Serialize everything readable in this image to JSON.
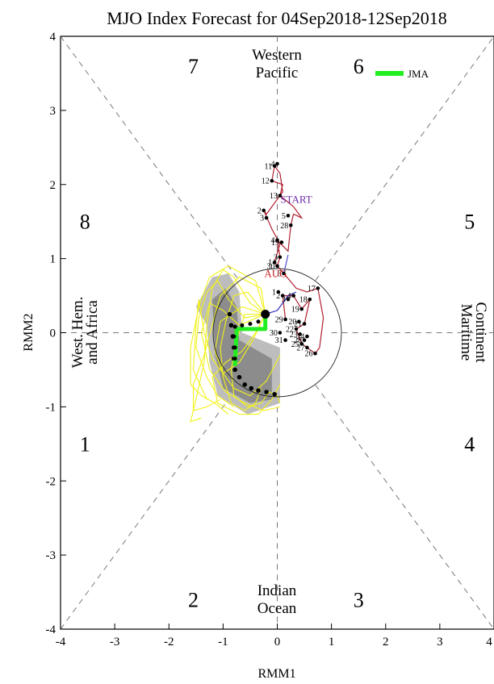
{
  "chart_data": {
    "type": "scatter",
    "title": "MJO Index Forecast for 04Sep2018-12Sep2018",
    "xlabel": "RMM1",
    "ylabel": "RMM2",
    "xlim": [
      -4,
      4
    ],
    "ylim": [
      -4,
      4
    ],
    "xticks": [
      "-4",
      "-3",
      "-2",
      "-1",
      "0",
      "1",
      "2",
      "3",
      "4"
    ],
    "yticks": [
      "-4",
      "-3",
      "-2",
      "-1",
      "0",
      "1",
      "2",
      "3",
      "4"
    ],
    "phases": [
      {
        "label": "1",
        "x": -3.55,
        "y": -1.5
      },
      {
        "label": "2",
        "x": -1.55,
        "y": -3.6
      },
      {
        "label": "3",
        "x": 1.5,
        "y": -3.6
      },
      {
        "label": "4",
        "x": 3.55,
        "y": -1.5
      },
      {
        "label": "5",
        "x": 3.55,
        "y": 1.5
      },
      {
        "label": "6",
        "x": 1.5,
        "y": 3.6
      },
      {
        "label": "7",
        "x": -1.55,
        "y": 3.6
      },
      {
        "label": "8",
        "x": -3.55,
        "y": 1.5
      }
    ],
    "regions": {
      "top": [
        "Western",
        "Pacific"
      ],
      "bottom": [
        "Indian",
        "Ocean"
      ],
      "left": [
        "West. Hem.",
        "and Africa"
      ],
      "right": [
        "Maritime",
        "Continent"
      ]
    },
    "legend": {
      "entries": [
        {
          "name": "JMA",
          "color": "#22ee22"
        }
      ],
      "position": "top-right"
    },
    "month_labels": [
      {
        "text": "START",
        "color": "#6a2aa8",
        "x": 0.35,
        "y": 1.75
      },
      {
        "text": "AUG",
        "color": "#d02020",
        "x": -0.03,
        "y": 0.75
      }
    ],
    "observed": {
      "color": "#b02030",
      "points": [
        {
          "label": "1",
          "x": 0.02,
          "y": 0.55
        },
        {
          "label": "2",
          "x": 0.1,
          "y": 0.5
        },
        {
          "label": "3",
          "x": 0.2,
          "y": 0.45
        },
        {
          "label": "4",
          "x": 0.3,
          "y": 0.5
        },
        {
          "label": "17",
          "x": 0.75,
          "y": 0.6
        },
        {
          "label": "18",
          "x": 0.6,
          "y": 0.45
        },
        {
          "label": "19",
          "x": 0.45,
          "y": 0.32
        },
        {
          "label": "20",
          "x": 0.4,
          "y": 0.15
        },
        {
          "label": "21",
          "x": 0.5,
          "y": 0.12
        },
        {
          "label": "22",
          "x": 0.35,
          "y": 0.05
        },
        {
          "label": "23",
          "x": 0.42,
          "y": -0.02
        },
        {
          "label": "24",
          "x": 0.55,
          "y": -0.05
        },
        {
          "label": "25",
          "x": 0.45,
          "y": -0.15
        },
        {
          "label": "26",
          "x": 0.7,
          "y": -0.28
        },
        {
          "label": "27",
          "x": 0.55,
          "y": -0.2
        },
        {
          "label": "28",
          "x": 0.5,
          "y": -0.1
        },
        {
          "label": "29",
          "x": 0.15,
          "y": 0.18
        },
        {
          "label": "30",
          "x": 0.05,
          "y": 0.0
        },
        {
          "label": "31",
          "x": 0.15,
          "y": -0.1
        },
        {
          "label": "6",
          "x": 0.12,
          "y": 0.8
        },
        {
          "label": "1",
          "x": -0.05,
          "y": 0.95
        },
        {
          "label": "30",
          "x": 0.0,
          "y": 0.9
        },
        {
          "label": "3",
          "x": 0.05,
          "y": 1.02
        },
        {
          "label": "4",
          "x": 0.0,
          "y": 1.25
        },
        {
          "label": "19",
          "x": 0.08,
          "y": 1.22
        },
        {
          "label": "5",
          "x": 0.2,
          "y": 1.58
        },
        {
          "label": "28",
          "x": 0.25,
          "y": 1.45
        },
        {
          "label": "2",
          "x": -0.25,
          "y": 1.65
        },
        {
          "label": "3",
          "x": -0.2,
          "y": 1.55
        },
        {
          "label": "13",
          "x": 0.05,
          "y": 1.85
        },
        {
          "label": "12",
          "x": -0.1,
          "y": 2.05
        },
        {
          "label": "11",
          "x": -0.05,
          "y": 2.25
        },
        {
          "label": "4",
          "x": 0.0,
          "y": 2.28
        }
      ],
      "path": [
        [
          0.12,
          0.8
        ],
        [
          0.35,
          0.6
        ],
        [
          0.55,
          0.55
        ],
        [
          0.75,
          0.6
        ],
        [
          0.85,
          0.2
        ],
        [
          0.78,
          -0.2
        ],
        [
          0.7,
          -0.28
        ],
        [
          0.45,
          -0.15
        ],
        [
          0.35,
          0.05
        ],
        [
          0.5,
          0.12
        ],
        [
          0.6,
          0.45
        ],
        [
          0.45,
          0.32
        ],
        [
          0.3,
          0.5
        ],
        [
          0.1,
          0.5
        ],
        [
          0.15,
          0.18
        ]
      ]
    },
    "observed_upper": {
      "color": "#b02030",
      "path": [
        [
          0.12,
          0.8
        ],
        [
          0.0,
          0.9
        ],
        [
          0.05,
          1.02
        ],
        [
          0.0,
          1.25
        ],
        [
          0.2,
          1.1
        ],
        [
          0.25,
          1.45
        ],
        [
          0.3,
          1.6
        ],
        [
          0.45,
          1.55
        ],
        [
          0.3,
          1.7
        ],
        [
          0.05,
          1.85
        ],
        [
          0.1,
          2.0
        ],
        [
          -0.1,
          2.05
        ],
        [
          -0.05,
          2.25
        ],
        [
          0.05,
          2.15
        ],
        [
          0.1,
          1.9
        ],
        [
          -0.2,
          1.6
        ],
        [
          -0.25,
          1.65
        ],
        [
          -0.1,
          1.4
        ],
        [
          0.05,
          1.2
        ],
        [
          -0.05,
          0.95
        ],
        [
          0.0,
          0.9
        ]
      ]
    },
    "connector_blue": {
      "color": "#3030c0",
      "path": [
        [
          -0.22,
          0.25
        ],
        [
          0.0,
          0.3
        ],
        [
          0.2,
          0.5
        ],
        [
          0.35,
          0.55
        ]
      ]
    },
    "connector_blue2": {
      "color": "#5050d0",
      "path": [
        [
          0.12,
          0.8
        ],
        [
          0.2,
          1.05
        ]
      ]
    },
    "forecast_start": {
      "x": -0.22,
      "y": 0.25
    },
    "jma_forecast": {
      "color": "#22ee22",
      "path": [
        [
          -0.22,
          0.25
        ],
        [
          -0.22,
          0.05
        ],
        [
          -0.75,
          0.05
        ],
        [
          -0.78,
          -0.45
        ]
      ],
      "points": [
        [
          -0.22,
          0.25
        ],
        [
          -0.35,
          0.15
        ],
        [
          -0.5,
          0.12
        ],
        [
          -0.65,
          0.1
        ],
        [
          -0.78,
          0.08
        ],
        [
          -0.8,
          -0.05
        ],
        [
          -0.78,
          -0.2
        ],
        [
          -0.78,
          -0.35
        ]
      ]
    },
    "ensemble_mean": {
      "points": [
        [
          -0.88,
          0.25
        ],
        [
          -0.85,
          0.1
        ],
        [
          -0.82,
          -0.05
        ],
        [
          -0.8,
          -0.2
        ],
        [
          -0.8,
          -0.35
        ],
        [
          -0.78,
          -0.5
        ],
        [
          -0.7,
          -0.6
        ],
        [
          -0.6,
          -0.7
        ],
        [
          -0.48,
          -0.75
        ],
        [
          -0.35,
          -0.78
        ],
        [
          -0.2,
          -0.8
        ],
        [
          -0.05,
          -0.83
        ]
      ]
    },
    "spread_light": [
      [
        -1.5,
        0.35
      ],
      [
        -1.2,
        0.75
      ],
      [
        -0.9,
        0.8
      ],
      [
        -0.7,
        0.55
      ],
      [
        -0.65,
        0.0
      ],
      [
        0.05,
        -0.2
      ],
      [
        0.05,
        -0.95
      ],
      [
        -0.55,
        -1.1
      ],
      [
        -1.1,
        -0.85
      ],
      [
        -1.25,
        -0.4
      ],
      [
        -1.3,
        0.1
      ]
    ],
    "spread_dark": [
      [
        -1.2,
        0.45
      ],
      [
        -0.95,
        0.6
      ],
      [
        -0.75,
        0.35
      ],
      [
        -0.7,
        -0.1
      ],
      [
        -0.1,
        -0.35
      ],
      [
        -0.1,
        -0.9
      ],
      [
        -0.5,
        -0.95
      ],
      [
        -1.0,
        -0.75
      ],
      [
        -1.15,
        -0.3
      ]
    ],
    "ensemble_members": [
      [
        [
          -0.22,
          0.25
        ],
        [
          -0.6,
          0.2
        ],
        [
          -0.9,
          0.45
        ],
        [
          -1.1,
          0.7
        ],
        [
          -1.3,
          0.55
        ],
        [
          -1.45,
          0.2
        ],
        [
          -1.5,
          -0.2
        ],
        [
          -1.3,
          -0.6
        ],
        [
          -1.1,
          -0.85
        ],
        [
          -0.8,
          -1.0
        ]
      ],
      [
        [
          -0.22,
          0.25
        ],
        [
          -0.5,
          0.4
        ],
        [
          -0.8,
          0.75
        ],
        [
          -1.0,
          0.85
        ],
        [
          -1.2,
          0.6
        ],
        [
          -1.3,
          0.1
        ],
        [
          -1.35,
          -0.4
        ],
        [
          -1.5,
          -0.9
        ],
        [
          -1.6,
          -1.2
        ],
        [
          -1.4,
          -1.15
        ]
      ],
      [
        [
          -0.22,
          0.25
        ],
        [
          -0.7,
          0.1
        ],
        [
          -1.0,
          0.3
        ],
        [
          -1.25,
          0.4
        ],
        [
          -1.4,
          0.0
        ],
        [
          -1.25,
          -0.5
        ],
        [
          -0.95,
          -0.8
        ],
        [
          -0.6,
          -0.95
        ],
        [
          -0.25,
          -1.05
        ],
        [
          0.05,
          -1.0
        ]
      ],
      [
        [
          -0.22,
          0.25
        ],
        [
          -0.4,
          0.0
        ],
        [
          -0.65,
          -0.25
        ],
        [
          -0.95,
          -0.4
        ],
        [
          -1.2,
          -0.6
        ],
        [
          -1.1,
          -0.95
        ],
        [
          -0.7,
          -1.1
        ],
        [
          -0.35,
          -1.1
        ],
        [
          -0.1,
          -0.9
        ],
        [
          0.05,
          -0.7
        ]
      ],
      [
        [
          -0.22,
          0.25
        ],
        [
          -0.55,
          0.55
        ],
        [
          -0.8,
          0.5
        ],
        [
          -0.95,
          0.15
        ],
        [
          -1.05,
          -0.2
        ],
        [
          -1.0,
          -0.6
        ],
        [
          -0.85,
          -0.95
        ],
        [
          -0.6,
          -1.05
        ],
        [
          -0.4,
          -0.95
        ],
        [
          -0.3,
          -0.75
        ]
      ],
      [
        [
          -0.22,
          0.25
        ],
        [
          -0.3,
          0.6
        ],
        [
          -0.7,
          0.75
        ],
        [
          -1.05,
          0.5
        ],
        [
          -1.2,
          0.1
        ],
        [
          -1.35,
          -0.3
        ],
        [
          -1.55,
          -0.7
        ],
        [
          -1.55,
          -1.05
        ],
        [
          -1.3,
          -1.0
        ],
        [
          -1.05,
          -0.9
        ]
      ],
      [
        [
          -0.22,
          0.25
        ],
        [
          -0.45,
          -0.1
        ],
        [
          -0.7,
          -0.4
        ],
        [
          -1.0,
          -0.55
        ],
        [
          -1.2,
          -0.35
        ],
        [
          -1.35,
          0.0
        ],
        [
          -1.45,
          0.45
        ],
        [
          -1.5,
          0.1
        ],
        [
          -1.55,
          -0.5
        ],
        [
          -1.3,
          -0.9
        ]
      ],
      [
        [
          -0.22,
          0.25
        ],
        [
          -0.6,
          0.25
        ],
        [
          -0.75,
          -0.1
        ],
        [
          -0.85,
          -0.5
        ],
        [
          -0.8,
          -0.85
        ],
        [
          -0.55,
          -1.0
        ],
        [
          -0.3,
          -0.95
        ],
        [
          -0.15,
          -0.8
        ],
        [
          0.0,
          -0.85
        ],
        [
          0.05,
          -0.95
        ]
      ],
      [
        [
          -0.22,
          0.25
        ],
        [
          -0.4,
          0.7
        ],
        [
          -0.9,
          0.9
        ],
        [
          -1.25,
          0.75
        ],
        [
          -1.45,
          0.35
        ],
        [
          -1.6,
          -0.2
        ],
        [
          -1.6,
          -0.7
        ],
        [
          -1.4,
          -0.85
        ],
        [
          -1.15,
          -0.95
        ],
        [
          -0.9,
          -1.1
        ]
      ],
      [
        [
          -0.22,
          0.25
        ],
        [
          -0.65,
          0.35
        ],
        [
          -1.05,
          0.15
        ],
        [
          -1.15,
          -0.25
        ],
        [
          -1.0,
          -0.55
        ],
        [
          -0.8,
          -0.75
        ],
        [
          -0.5,
          -0.85
        ],
        [
          -0.2,
          -0.65
        ],
        [
          -0.05,
          -0.45
        ],
        [
          0.05,
          -0.3
        ]
      ]
    ]
  }
}
